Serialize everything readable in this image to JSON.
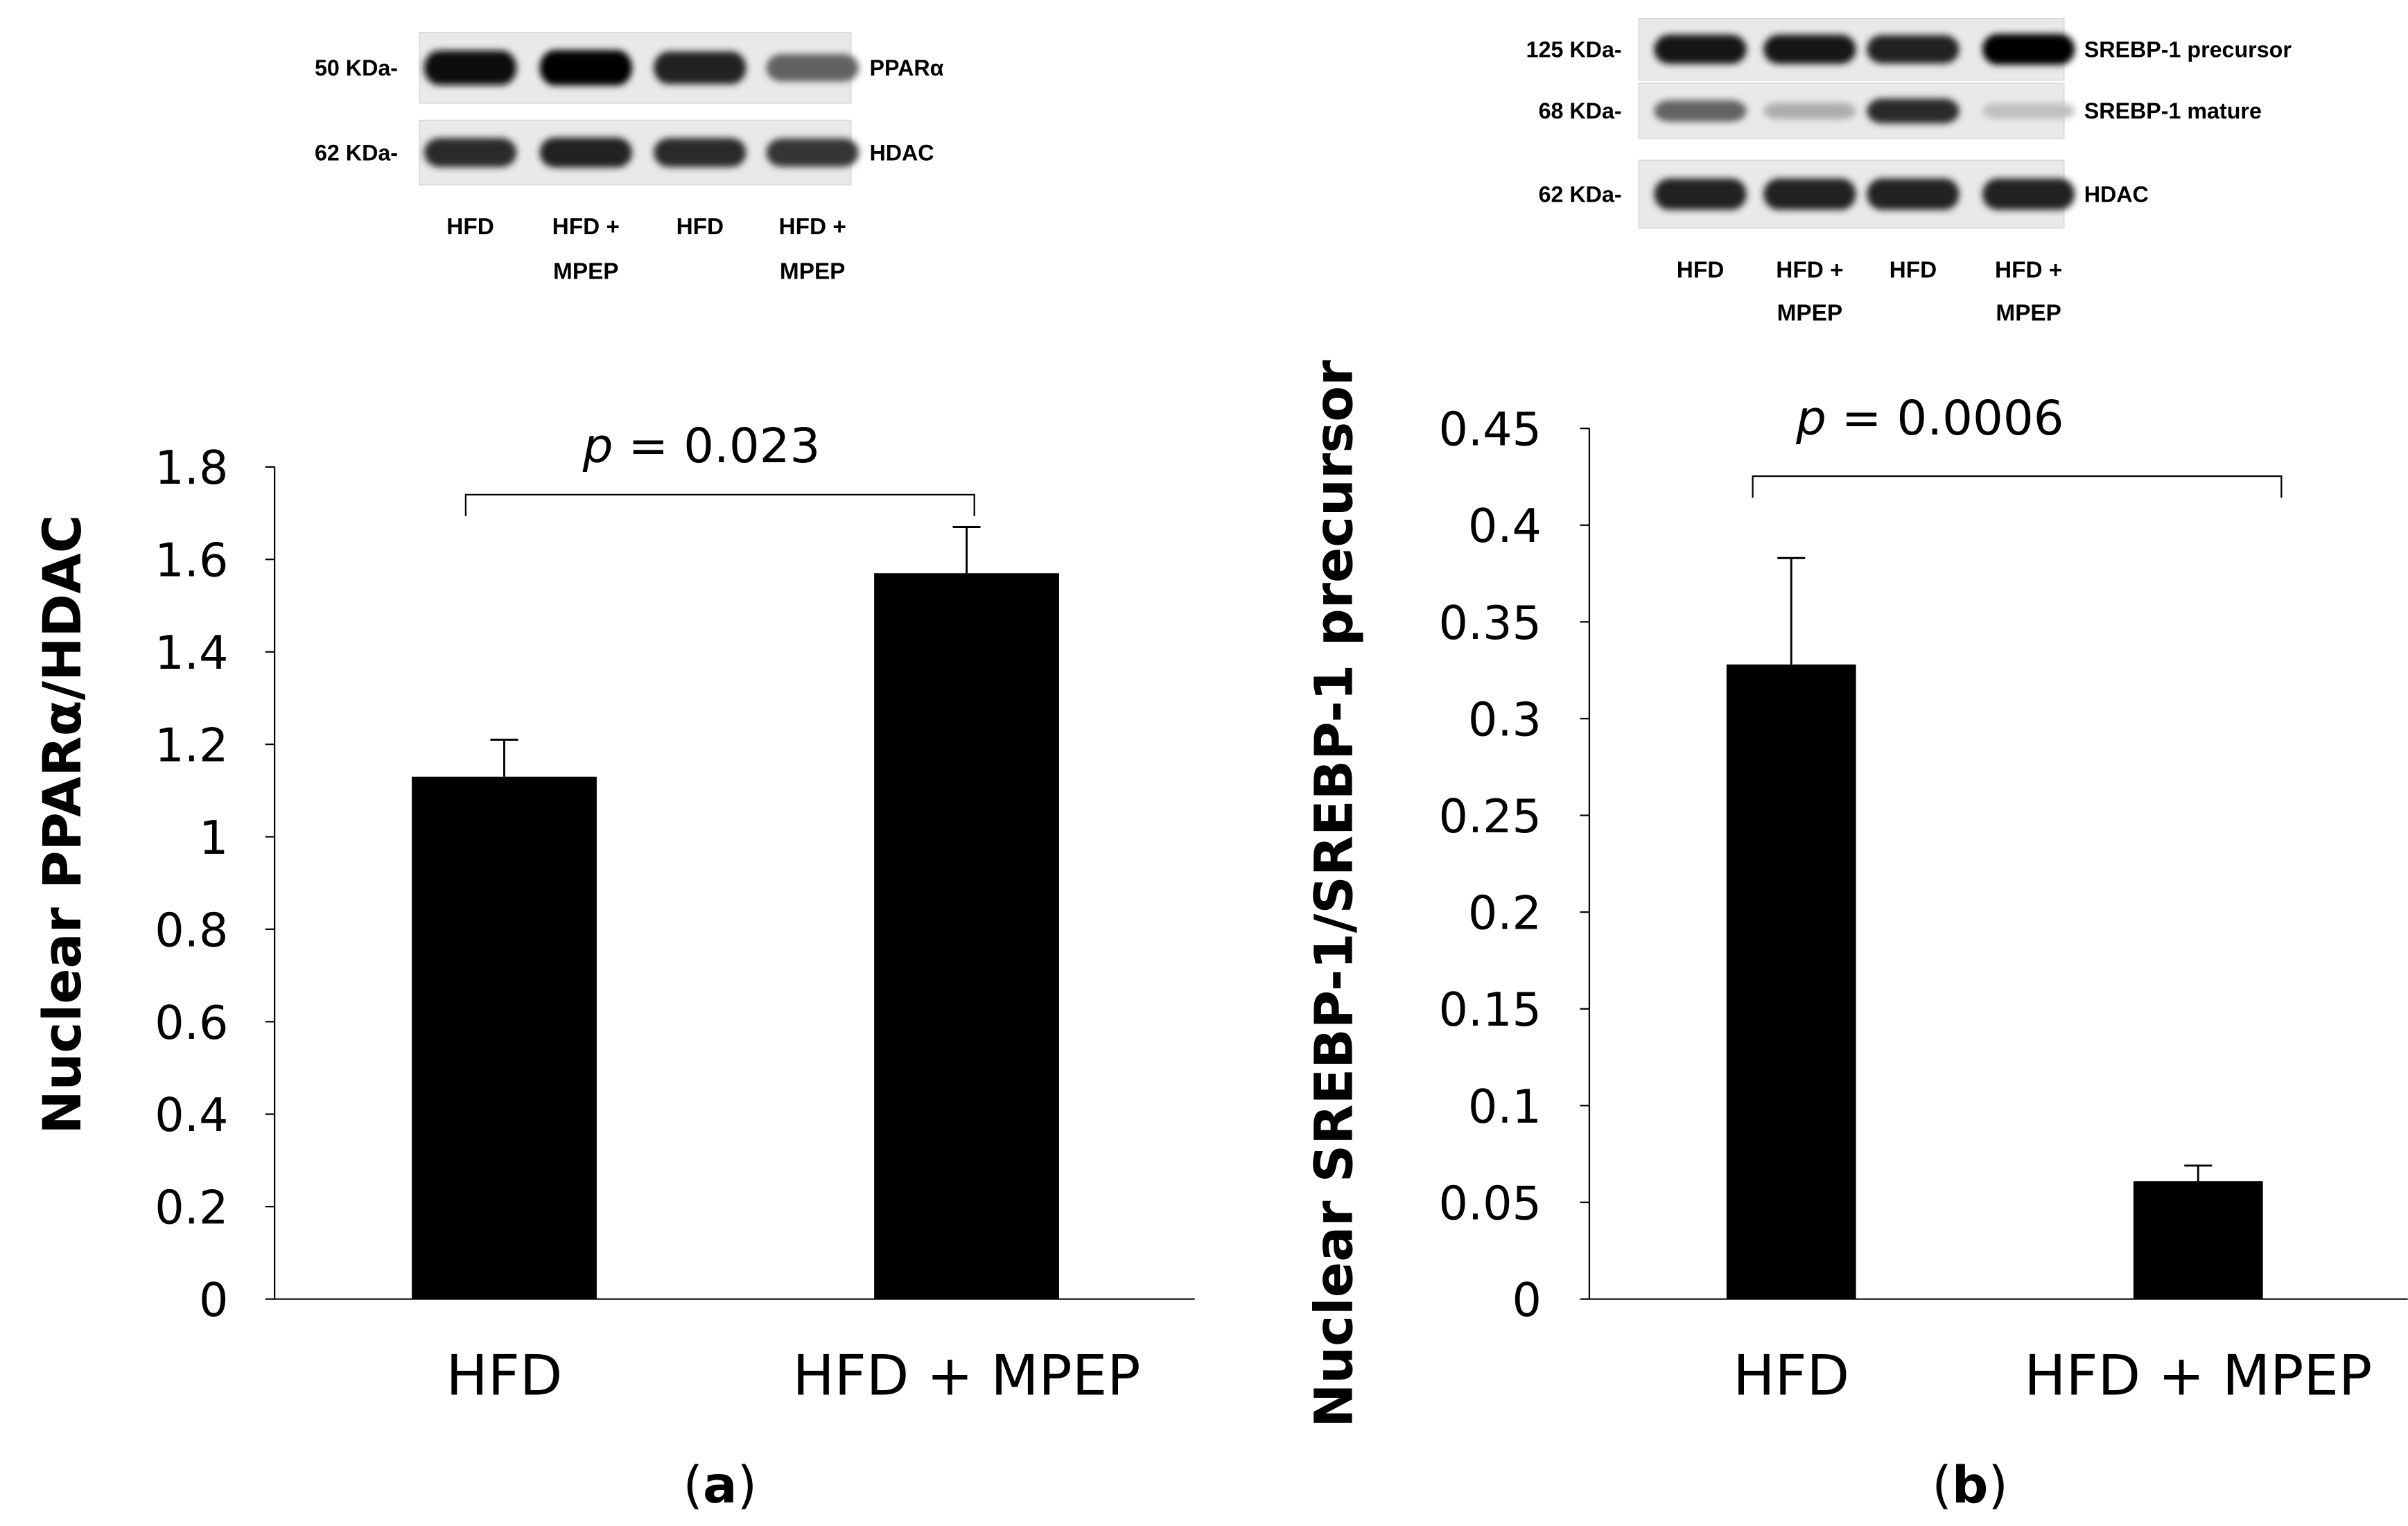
{
  "panels": [
    {
      "letter_prefix": "(",
      "letter": "a",
      "letter_suffix": ")",
      "blot": {
        "rows": [
          {
            "size": "50 KDa-",
            "protein": "PPARα"
          },
          {
            "size": "62 KDa-",
            "protein": "HDAC"
          }
        ],
        "lanes": [
          {
            "line1": "HFD",
            "line2": ""
          },
          {
            "line1": "HFD +",
            "line2": "MPEP"
          },
          {
            "line1": "HFD",
            "line2": ""
          },
          {
            "line1": "HFD +",
            "line2": "MPEP"
          }
        ],
        "band_intensity": [
          [
            0.95,
            1.0,
            0.85,
            0.55
          ],
          [
            0.8,
            0.85,
            0.8,
            0.75
          ]
        ]
      },
      "p_label": "p",
      "p_rest": " = 0.023"
    },
    {
      "letter_prefix": "(",
      "letter": "b",
      "letter_suffix": ")",
      "blot": {
        "rows": [
          {
            "size": "125 KDa-",
            "protein": "SREBP-1 precursor"
          },
          {
            "size": "68 KDa-",
            "protein": "SREBP-1 mature"
          },
          {
            "size": "62 KDa-",
            "protein": "HDAC"
          }
        ],
        "lanes": [
          {
            "line1": "HFD",
            "line2": ""
          },
          {
            "line1": "HFD +",
            "line2": "MPEP"
          },
          {
            "line1": "HFD",
            "line2": ""
          },
          {
            "line1": "HFD +",
            "line2": "MPEP"
          }
        ],
        "band_intensity": [
          [
            0.9,
            0.9,
            0.85,
            1.0
          ],
          [
            0.55,
            0.2,
            0.8,
            0.12
          ],
          [
            0.85,
            0.85,
            0.85,
            0.85
          ]
        ]
      },
      "p_label": "p",
      "p_rest": " = 0.0006"
    }
  ],
  "chart_data": [
    {
      "type": "bar",
      "categories": [
        "HFD",
        "HFD + MPEP"
      ],
      "values": [
        1.13,
        1.57
      ],
      "error": [
        0.08,
        0.1
      ],
      "ylabel": "Nuclear  PPARα/HDAC",
      "ylim": [
        0,
        1.8
      ],
      "yticks": [
        0,
        0.2,
        0.4,
        0.6,
        0.8,
        1,
        1.2,
        1.4,
        1.6,
        1.8
      ],
      "ytick_labels": [
        "0",
        "0.2",
        "0.4",
        "0.6",
        "0.8",
        "1",
        "1.2",
        "1.4",
        "1.6",
        "1.8"
      ],
      "grid": false,
      "bar_color": "#000000"
    },
    {
      "type": "bar",
      "categories": [
        "HFD",
        "HFD + MPEP"
      ],
      "values": [
        0.328,
        0.061
      ],
      "error": [
        0.055,
        0.008
      ],
      "ylabel": "Nuclear  SREBP-1/SREBP-1 precursor",
      "ylim": [
        0,
        0.45
      ],
      "yticks": [
        0,
        0.05,
        0.1,
        0.15,
        0.2,
        0.25,
        0.3,
        0.35,
        0.4,
        0.45
      ],
      "ytick_labels": [
        "0",
        "0.05",
        "0.1",
        "0.15",
        "0.2",
        "0.25",
        "0.3",
        "0.35",
        "0.4",
        "0.45"
      ],
      "grid": false,
      "bar_color": "#000000"
    }
  ]
}
